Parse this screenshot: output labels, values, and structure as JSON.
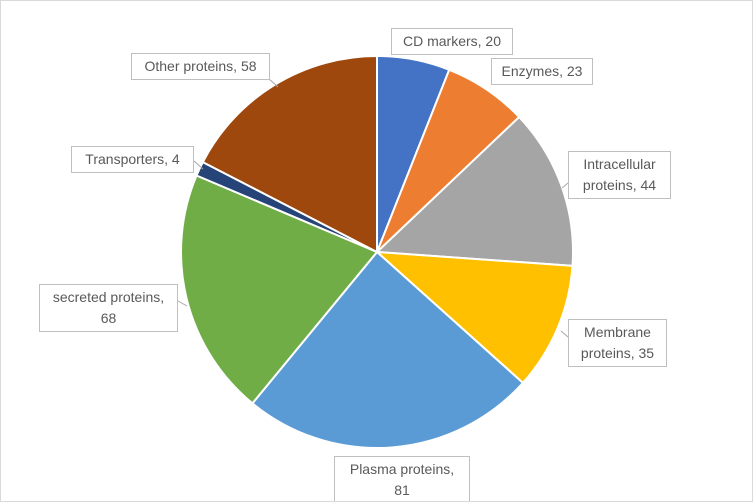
{
  "chart_data": {
    "type": "pie",
    "labels": [
      "CD markers, 20",
      "Enzymes, 23",
      "Intracellular proteins, 44",
      "Membrane proteins, 35",
      "Plasma proteins, 81",
      "secreted proteins, 68",
      "Transporters, 4",
      "Other proteins, 58"
    ],
    "values": [
      20,
      23,
      44,
      35,
      81,
      68,
      4,
      58
    ],
    "colors": [
      "#4472c4",
      "#ed7d31",
      "#a5a5a5",
      "#ffc000",
      "#5b9bd5",
      "#70ad47",
      "#264478",
      "#9e480e"
    ]
  }
}
